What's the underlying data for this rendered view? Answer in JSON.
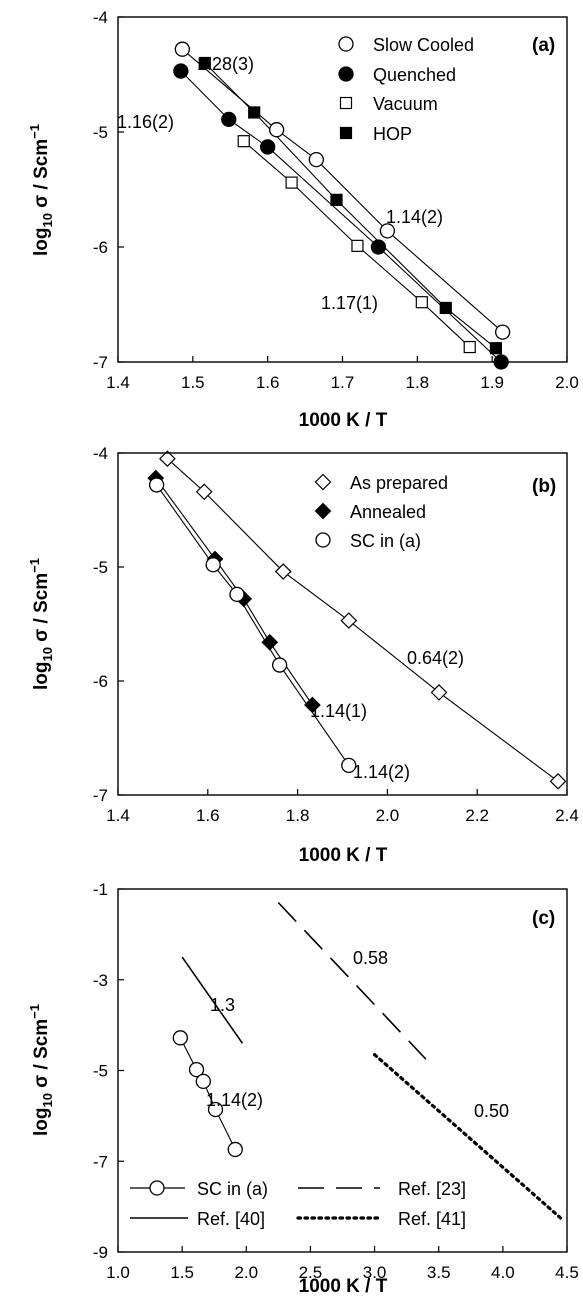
{
  "chart_data": [
    {
      "type": "scatter",
      "panel_label": "(a)",
      "xlabel": "1000 K / T",
      "ylabel": "log10 σ / Scm−1",
      "xlim": [
        1.4,
        2.0
      ],
      "ylim": [
        -7,
        -4
      ],
      "xticks": [
        "1.4",
        "1.5",
        "1.6",
        "1.7",
        "1.8",
        "1.9",
        "2.0"
      ],
      "yticks": [
        "-4",
        "-5",
        "-6",
        "-7"
      ],
      "legend_position": "top-right",
      "series": [
        {
          "name": "Slow Cooled",
          "marker": "circle-open",
          "x": [
            1.486,
            1.612,
            1.665,
            1.76,
            1.914
          ],
          "y": [
            -4.28,
            -4.98,
            -5.24,
            -5.86,
            -6.74
          ]
        },
        {
          "name": "Quenched",
          "marker": "circle-filled",
          "x": [
            1.484,
            1.548,
            1.6,
            1.748,
            1.912
          ],
          "y": [
            -4.47,
            -4.89,
            -5.13,
            -6.0,
            -7.0
          ]
        },
        {
          "name": "Vacuum",
          "marker": "square-open",
          "x": [
            1.568,
            1.632,
            1.72,
            1.806,
            1.87
          ],
          "y": [
            -5.08,
            -5.44,
            -5.99,
            -6.48,
            -6.87
          ]
        },
        {
          "name": "HOP",
          "marker": "square-filled",
          "x": [
            1.516,
            1.582,
            1.692,
            1.838,
            1.905
          ],
          "y": [
            -4.4,
            -4.83,
            -5.59,
            -6.53,
            -6.88
          ]
        }
      ],
      "annotations": [
        "1.28(3)",
        "1.16(2)",
        "1.14(2)",
        "1.17(1)"
      ]
    },
    {
      "type": "scatter",
      "panel_label": "(b)",
      "xlabel": "1000 K / T",
      "ylabel": "log10 σ / Scm−1",
      "xlim": [
        1.4,
        2.4
      ],
      "ylim": [
        -7,
        -4
      ],
      "xticks": [
        "1.4",
        "1.6",
        "1.8",
        "2.0",
        "2.2",
        "2.4"
      ],
      "yticks": [
        "-4",
        "-5",
        "-6",
        "-7"
      ],
      "legend_position": "top-right",
      "series": [
        {
          "name": "As prepared",
          "marker": "diamond-open",
          "x": [
            1.51,
            1.592,
            1.768,
            1.914,
            2.115,
            2.38
          ],
          "y": [
            -4.05,
            -4.34,
            -5.04,
            -5.47,
            -6.1,
            -6.88
          ]
        },
        {
          "name": "Annealed",
          "marker": "diamond-filled",
          "x": [
            1.484,
            1.616,
            1.68,
            1.738,
            1.833
          ],
          "y": [
            -4.22,
            -4.93,
            -5.28,
            -5.66,
            -6.21
          ]
        },
        {
          "name": "SC in (a)",
          "marker": "circle-open",
          "x": [
            1.486,
            1.612,
            1.665,
            1.76,
            1.914
          ],
          "y": [
            -4.28,
            -4.98,
            -5.24,
            -5.86,
            -6.74
          ]
        }
      ],
      "annotations": [
        "0.64(2)",
        "1.14(1)",
        "1.14(2)"
      ]
    },
    {
      "type": "line",
      "panel_label": "(c)",
      "xlabel": "1000 K / T",
      "ylabel": "log10 σ / Scm−1",
      "xlim": [
        1.0,
        4.5
      ],
      "ylim": [
        -9,
        -1
      ],
      "xticks": [
        "1.0",
        "1.5",
        "2.0",
        "2.5",
        "3.0",
        "3.5",
        "4.0",
        "4.5"
      ],
      "yticks": [
        "-1",
        "-3",
        "-5",
        "-7",
        "-9"
      ],
      "legend_position": "bottom",
      "series": [
        {
          "name": "SC in (a)",
          "style": "solid-with-open-circles",
          "x": [
            1.486,
            1.612,
            1.665,
            1.76,
            1.914
          ],
          "y": [
            -4.28,
            -4.98,
            -5.24,
            -5.86,
            -6.74
          ]
        },
        {
          "name": "Ref. [40]",
          "style": "solid",
          "x": [
            1.5,
            1.97
          ],
          "y": [
            -2.5,
            -4.4
          ]
        },
        {
          "name": "Ref. [23]",
          "style": "dashed",
          "x": [
            2.25,
            3.4
          ],
          "y": [
            -1.3,
            -4.75
          ]
        },
        {
          "name": "Ref. [41]",
          "style": "dotted",
          "x": [
            3.0,
            4.47
          ],
          "y": [
            -4.65,
            -8.3
          ]
        }
      ],
      "annotations": [
        "1.3",
        "0.58",
        "1.14(2)",
        "0.50"
      ]
    }
  ]
}
